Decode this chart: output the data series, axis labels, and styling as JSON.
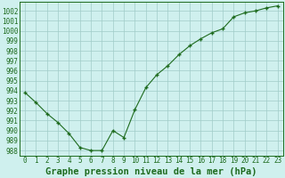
{
  "x": [
    0,
    1,
    2,
    3,
    4,
    5,
    6,
    7,
    8,
    9,
    10,
    11,
    12,
    13,
    14,
    15,
    16,
    17,
    18,
    19,
    20,
    21,
    22,
    23
  ],
  "y": [
    993.8,
    992.8,
    991.7,
    990.8,
    989.7,
    988.3,
    988.0,
    988.0,
    990.0,
    989.3,
    992.1,
    994.3,
    995.6,
    996.5,
    997.6,
    998.5,
    999.2,
    999.8,
    1000.2,
    1001.4,
    1001.8,
    1002.0,
    1002.3,
    1002.5
  ],
  "line_color": "#1e6b1e",
  "marker": "+",
  "marker_color": "#1e6b1e",
  "bg_color": "#cff0ee",
  "grid_color": "#a0ccc8",
  "xlabel": "Graphe pression niveau de la mer (hPa)",
  "xlabel_fontsize": 7.5,
  "xlabel_color": "#1e6b1e",
  "ylabel_ticks": [
    988,
    989,
    990,
    991,
    992,
    993,
    994,
    995,
    996,
    997,
    998,
    999,
    1000,
    1001,
    1002
  ],
  "ylim": [
    987.5,
    1002.9
  ],
  "xlim": [
    -0.5,
    23.5
  ],
  "tick_fontsize": 5.5,
  "tick_color": "#1e6b1e"
}
